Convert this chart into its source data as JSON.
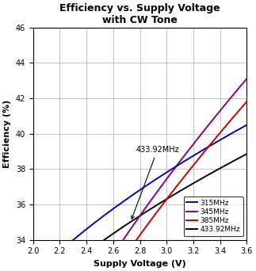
{
  "title": "Efficiency vs. Supply Voltage\nwith CW Tone",
  "xlabel": "Supply Voltage (V)",
  "ylabel": "Efficiency (%)",
  "xlim": [
    2.0,
    3.6
  ],
  "ylim": [
    34,
    46
  ],
  "xticks": [
    2.0,
    2.2,
    2.4,
    2.6,
    2.8,
    3.0,
    3.2,
    3.4,
    3.6
  ],
  "yticks": [
    34,
    36,
    38,
    40,
    42,
    44,
    46
  ],
  "curves": {
    "315MHz": {
      "color": "#0000CC",
      "label": "315MHz"
    },
    "345MHz": {
      "color": "#880088",
      "label": "345MHz"
    },
    "385MHz": {
      "color": "#CC0000",
      "label": "385MHz"
    },
    "433MHz": {
      "color": "#000000",
      "label": "433.92MHz"
    }
  },
  "background_color": "#ffffff",
  "grid_color": "#aaaaaa",
  "figsize": [
    3.23,
    3.42
  ],
  "dpi": 100
}
